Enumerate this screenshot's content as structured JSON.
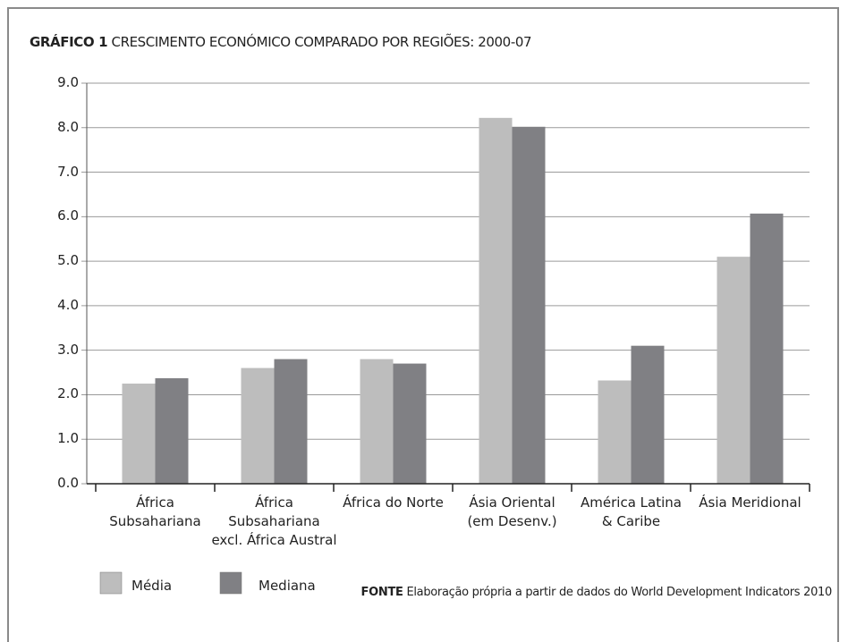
{
  "chart_data": {
    "type": "bar",
    "label": "GRÁFICO 1",
    "title": "CRESCIMENTO ECONÓMICO COMPARADO POR REGIÕES: 2000-07",
    "categories": [
      "África\nSubsahariana",
      "África\nSubsahariana\nexcl. África Austral",
      "África do Norte",
      "Ásia Oriental\n(em Desenv.)",
      "América Latina\n& Caribe",
      "Ásia Meridional"
    ],
    "series": [
      {
        "name": "Média",
        "color": "#bdbdbd",
        "values": [
          2.25,
          2.6,
          2.8,
          8.22,
          2.32,
          5.1
        ]
      },
      {
        "name": "Mediana",
        "color": "#808084",
        "values": [
          2.37,
          2.8,
          2.7,
          8.02,
          3.1,
          6.07
        ]
      }
    ],
    "ylim": [
      0,
      9
    ],
    "yticks": [
      {
        "value": 0,
        "label": "0.0"
      },
      {
        "value": 1,
        "label": "1.0"
      },
      {
        "value": 2,
        "label": "2.0"
      },
      {
        "value": 3,
        "label": "3.0"
      },
      {
        "value": 4,
        "label": "4.0"
      },
      {
        "value": 5,
        "label": "5.0"
      },
      {
        "value": 6,
        "label": "6.0"
      },
      {
        "value": 7,
        "label": "7.0"
      },
      {
        "value": 8,
        "label": "8.0"
      },
      {
        "value": 9,
        "label": "9.0"
      }
    ],
    "grid": true,
    "source_label": "FONTE",
    "source": "Elaboração própria a partir de dados do World Development Indicators 2010"
  }
}
